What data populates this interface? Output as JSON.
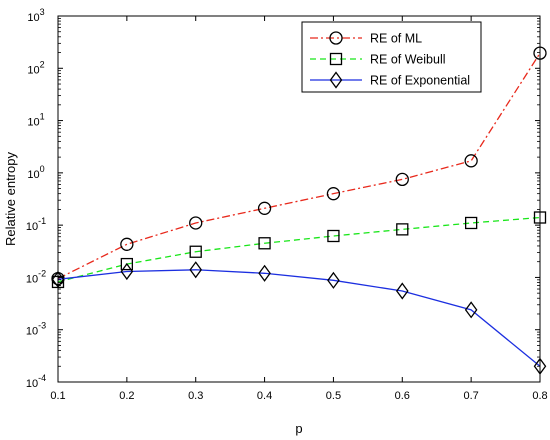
{
  "chart_data": {
    "type": "line",
    "title": "",
    "xlabel": "p",
    "ylabel": "Relative entropy",
    "x": [
      0.1,
      0.2,
      0.3,
      0.4,
      0.5,
      0.6,
      0.7,
      0.8
    ],
    "xlim": [
      0.1,
      0.8
    ],
    "xticks": [
      "0.1",
      "0.2",
      "0.3",
      "0.4",
      "0.5",
      "0.6",
      "0.7",
      "0.8"
    ],
    "yscale": "log",
    "ylim": [
      0.0001,
      1000
    ],
    "yticks": [
      {
        "base": "10",
        "exp": "-4"
      },
      {
        "base": "10",
        "exp": "-3"
      },
      {
        "base": "10",
        "exp": "-2"
      },
      {
        "base": "10",
        "exp": "-1"
      },
      {
        "base": "10",
        "exp": "0"
      },
      {
        "base": "10",
        "exp": "1"
      },
      {
        "base": "10",
        "exp": "2"
      },
      {
        "base": "10",
        "exp": "3"
      }
    ],
    "grid": false,
    "legend_position": "top-right",
    "series": [
      {
        "name": "RE of ML",
        "color": "#e8291c",
        "line_style": "dash-dot",
        "marker": "circle",
        "values": [
          0.0095,
          0.043,
          0.11,
          0.21,
          0.4,
          0.75,
          1.7,
          195
        ]
      },
      {
        "name": "RE of Weibull",
        "color": "#19e619",
        "line_style": "dashed",
        "marker": "square",
        "values": [
          0.0082,
          0.018,
          0.031,
          0.045,
          0.062,
          0.083,
          0.11,
          0.14
        ]
      },
      {
        "name": "RE of Exponential",
        "color": "#1c2fe0",
        "line_style": "solid",
        "marker": "diamond",
        "values": [
          0.0092,
          0.013,
          0.014,
          0.012,
          0.0088,
          0.0055,
          0.0024,
          0.0002
        ]
      }
    ]
  }
}
